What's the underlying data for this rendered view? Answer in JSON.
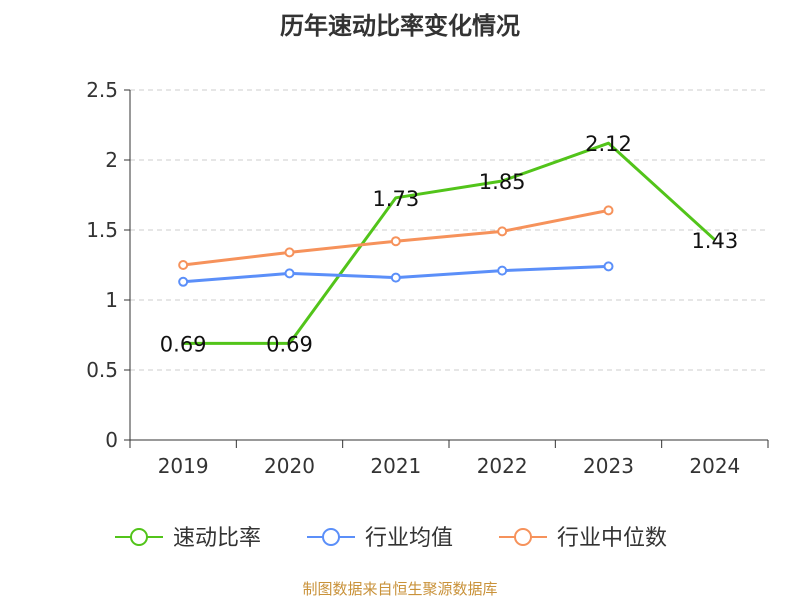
{
  "chart_data": {
    "type": "line",
    "title": "历年速动比率变化情况",
    "categories": [
      "2019",
      "2020",
      "2021",
      "2022",
      "2023",
      "2024"
    ],
    "ylim": [
      0,
      2.5
    ],
    "yticks": [
      0,
      0.5,
      1,
      1.5,
      2,
      2.5
    ],
    "ytick_labels": [
      "0",
      "0.5",
      "1",
      "1.5",
      "2",
      "2.5"
    ],
    "grid": true,
    "legend_position": "bottom",
    "series": [
      {
        "name": "速动比率",
        "color": "#52c41a",
        "values": [
          0.69,
          0.69,
          1.73,
          1.85,
          2.12,
          1.43
        ],
        "labels": [
          "0.69",
          "0.69",
          "1.73",
          "1.85",
          "2.12",
          "1.43"
        ],
        "show_labels": true,
        "show_markers": false
      },
      {
        "name": "行业均值",
        "color": "#5b8ff9",
        "values": [
          1.13,
          1.19,
          1.16,
          1.21,
          1.24,
          null
        ],
        "show_labels": false,
        "show_markers": true
      },
      {
        "name": "行业中位数",
        "color": "#f6925b",
        "values": [
          1.25,
          1.34,
          1.42,
          1.49,
          1.64,
          null
        ],
        "show_labels": false,
        "show_markers": true
      }
    ]
  },
  "source_text": "制图数据来自恒生聚源数据库"
}
